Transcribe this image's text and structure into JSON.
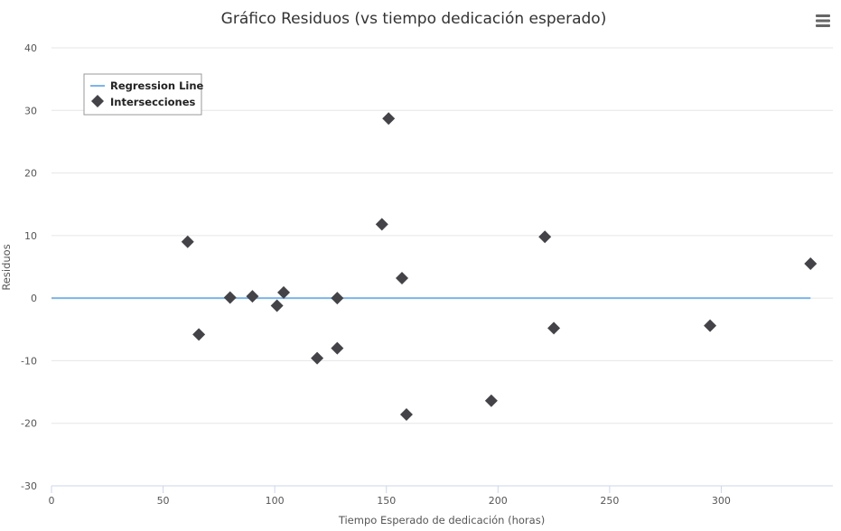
{
  "chart_data": {
    "type": "scatter",
    "title": "Gráfico Residuos (vs tiempo dedicación esperado)",
    "xlabel": "Tiempo Esperado de dedicación (horas)",
    "ylabel": "Residuos",
    "xlim": [
      0,
      350
    ],
    "ylim": [
      -30,
      40
    ],
    "x_ticks": [
      0,
      50,
      100,
      150,
      200,
      250,
      300
    ],
    "y_ticks": [
      -30,
      -20,
      -10,
      0,
      10,
      20,
      30,
      40
    ],
    "grid": true,
    "legend_position": "top-left",
    "series": [
      {
        "name": "Regression Line",
        "kind": "line",
        "color": "#7cb5ec",
        "points": [
          [
            0,
            0
          ],
          [
            340,
            0
          ]
        ]
      },
      {
        "name": "Intersecciones",
        "kind": "scatter",
        "marker": "diamond",
        "color": "#434348",
        "points": [
          [
            61,
            9
          ],
          [
            66,
            -5.8
          ],
          [
            80,
            0.1
          ],
          [
            90,
            0.3
          ],
          [
            101,
            -1.2
          ],
          [
            104,
            0.9
          ],
          [
            119,
            -9.6
          ],
          [
            128,
            -8
          ],
          [
            128,
            0
          ],
          [
            148,
            11.8
          ],
          [
            151,
            28.7
          ],
          [
            157,
            3.2
          ],
          [
            159,
            -18.6
          ],
          [
            197,
            -16.4
          ],
          [
            221,
            9.8
          ],
          [
            225,
            -4.8
          ],
          [
            295,
            -4.4
          ],
          [
            340,
            5.5
          ]
        ]
      }
    ]
  },
  "colors": {
    "grid": "#e6e6e6",
    "axis": "#ccd6eb",
    "legend_border": "#999999"
  },
  "menu_icon": "hamburger-menu-icon"
}
